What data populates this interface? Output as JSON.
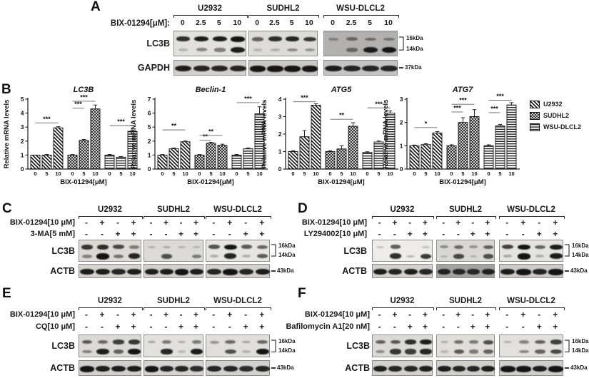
{
  "panel_a": {
    "label": "A",
    "cell_lines": [
      "U2932",
      "SUDHL2",
      "WSU-DLCL2"
    ],
    "dose_label": "BIX-01294[μM]:",
    "lane_labels": [
      "0",
      "2.5",
      "5",
      "10"
    ],
    "rows": [
      {
        "antibody": "LC3B",
        "markers": [
          "16kDa",
          "14kDa"
        ],
        "blots": [
          {
            "bg": "#e3e1de",
            "top": [
              0.85,
              0.95,
              0.95,
              1.0
            ],
            "bottom": [
              0.08,
              0.35,
              0.4,
              0.95
            ]
          },
          {
            "bg": "#dedcd9",
            "top": [
              0.55,
              0.85,
              0.9,
              0.8
            ],
            "bottom": [
              0.05,
              0.08,
              0.3,
              0.25
            ]
          },
          {
            "bg": "#b3b1af",
            "top": [
              0.2,
              0.4,
              0.35,
              0.3
            ],
            "bottom": [
              0.0,
              0.4,
              0.95,
              1.0
            ]
          }
        ]
      },
      {
        "antibody": "GAPDH",
        "markers": [
          "37kDa"
        ],
        "blots": [
          {
            "bg": "#d2cfcc",
            "single": [
              0.95,
              0.9,
              0.9,
              0.9
            ]
          },
          {
            "bg": "#cbc8c5",
            "single": [
              1.0,
              1.0,
              1.0,
              1.0
            ]
          },
          {
            "bg": "#c6c4c2",
            "single": [
              0.95,
              0.9,
              0.9,
              0.9
            ]
          }
        ]
      }
    ]
  },
  "panel_b": {
    "label": "B"
  },
  "legend": {
    "entries": [
      {
        "label": "U2932",
        "pattern": "diagonal"
      },
      {
        "label": "SUDHL2",
        "pattern": "crosshatch"
      },
      {
        "label": "WSU-DLCL2",
        "pattern": "hlines"
      }
    ]
  },
  "chart_data": [
    {
      "type": "bar",
      "title": "LC3B",
      "ylabel": "Relative mRNA levels",
      "xlabel": "BIX-01294[μM]",
      "categories": [
        "0",
        "5",
        "10"
      ],
      "yticks": [
        0,
        1,
        2,
        3,
        4,
        5
      ],
      "ylim": [
        0,
        5
      ],
      "grid": false,
      "series": [
        {
          "name": "U2932",
          "values": [
            1.0,
            1.0,
            2.95
          ],
          "errors": [
            0.0,
            0.05,
            0.08
          ]
        },
        {
          "name": "SUDHL2",
          "values": [
            1.0,
            2.05,
            4.3
          ],
          "errors": [
            0.04,
            0.07,
            0.28
          ]
        },
        {
          "name": "WSU-DLCL2",
          "values": [
            1.0,
            0.85,
            2.7
          ],
          "errors": [
            0.05,
            0.04,
            0.06
          ]
        }
      ],
      "significance": [
        {
          "from": 0,
          "to": 2,
          "y": 3.3,
          "stars": "***"
        },
        {
          "from": 3,
          "to": 4,
          "y": 4.35,
          "stars": "***"
        },
        {
          "from": 3,
          "to": 5,
          "y": 4.85,
          "stars": "***"
        },
        {
          "from": 6,
          "to": 8,
          "y": 3.1,
          "stars": "***"
        }
      ]
    },
    {
      "type": "bar",
      "title": "Beclin-1",
      "ylabel": "Relative mRNA levels",
      "xlabel": "BIX-01294[μM]",
      "categories": [
        "0",
        "5",
        "10"
      ],
      "yticks": [
        0,
        1,
        2,
        5,
        6,
        7
      ],
      "ylim": [
        0,
        7
      ],
      "axis_break": true,
      "grid": false,
      "series": [
        {
          "name": "U2932",
          "values": [
            1.0,
            1.45,
            1.95
          ],
          "errors": [
            0.04,
            0.06,
            0.07
          ]
        },
        {
          "name": "SUDHL2",
          "values": [
            1.0,
            1.85,
            1.7
          ],
          "errors": [
            0.04,
            0.06,
            0.08
          ]
        },
        {
          "name": "WSU-DLCL2",
          "values": [
            1.0,
            1.45,
            5.95
          ],
          "errors": [
            0.05,
            0.06,
            0.5
          ]
        }
      ],
      "significance": [
        {
          "from": 0,
          "to": 2,
          "y": 4.4,
          "stars": "**"
        },
        {
          "from": 3,
          "to": 4,
          "y": 2.15,
          "stars": "**"
        },
        {
          "from": 3,
          "to": 5,
          "y": 3.2,
          "stars": "**"
        },
        {
          "from": 6,
          "to": 8,
          "y": 6.75,
          "stars": "***"
        }
      ]
    },
    {
      "type": "bar",
      "title": "ATG5",
      "ylabel": "Relative mRNA levels",
      "xlabel": "BIX-01294[μM]",
      "categories": [
        "0",
        "5",
        "10"
      ],
      "yticks": [
        0,
        1,
        2,
        3,
        4
      ],
      "ylim": [
        0,
        4
      ],
      "grid": false,
      "series": [
        {
          "name": "U2932",
          "values": [
            1.0,
            1.85,
            3.65
          ],
          "errors": [
            0.04,
            0.35,
            0.08
          ]
        },
        {
          "name": "SUDHL2",
          "values": [
            1.0,
            1.15,
            2.45
          ],
          "errors": [
            0.05,
            0.18,
            0.2
          ]
        },
        {
          "name": "WSU-DLCL2",
          "values": [
            0.95,
            1.55,
            3.2
          ],
          "errors": [
            0.04,
            0.05,
            0.12
          ]
        }
      ],
      "significance": [
        {
          "from": 0,
          "to": 2,
          "y": 3.85,
          "stars": "***"
        },
        {
          "from": 3,
          "to": 5,
          "y": 2.85,
          "stars": "**"
        },
        {
          "from": 6,
          "to": 8,
          "y": 3.5,
          "stars": "***"
        }
      ]
    },
    {
      "type": "bar",
      "title": "ATG7",
      "ylabel": "Relative mRNA levels",
      "xlabel": "BIX-01294[μM]",
      "categories": [
        "0",
        "5",
        "10"
      ],
      "yticks": [
        0,
        1,
        2,
        3
      ],
      "ylim": [
        0,
        3
      ],
      "grid": false,
      "series": [
        {
          "name": "U2932",
          "values": [
            1.0,
            1.05,
            1.55
          ],
          "errors": [
            0.03,
            0.04,
            0.06
          ]
        },
        {
          "name": "SUDHL2",
          "values": [
            1.0,
            2.0,
            2.25
          ],
          "errors": [
            0.04,
            0.2,
            0.3
          ]
        },
        {
          "name": "WSU-DLCL2",
          "values": [
            1.0,
            1.85,
            2.75
          ],
          "errors": [
            0.04,
            0.06,
            0.1
          ]
        }
      ],
      "significance": [
        {
          "from": 0,
          "to": 2,
          "y": 1.78,
          "stars": "*"
        },
        {
          "from": 3,
          "to": 4,
          "y": 2.45,
          "stars": "***"
        },
        {
          "from": 3,
          "to": 5,
          "y": 2.78,
          "stars": "***"
        },
        {
          "from": 6,
          "to": 7,
          "y": 2.42,
          "stars": "***"
        },
        {
          "from": 6,
          "to": 8,
          "y": 2.95,
          "stars": "***"
        }
      ]
    }
  ],
  "panel_c": {
    "label": "C",
    "cell_lines": [
      "U2932",
      "SUDHL2",
      "WSU-DLCL2"
    ],
    "condition_rows": [
      {
        "label": "BIX-01294[10 μM]",
        "signs": [
          "-",
          "+",
          "-",
          "+"
        ]
      },
      {
        "label": "3-MA[5 mM]",
        "signs": [
          "-",
          "-",
          "+",
          "+"
        ]
      }
    ],
    "rows": [
      {
        "antibody": "LC3B",
        "markers": [
          "16kDa",
          "14kDa"
        ],
        "blots": [
          {
            "bg": "#ddd9d4",
            "top": [
              0.8,
              0.85,
              0.7,
              0.38
            ],
            "bottom": [
              0.35,
              1.0,
              0.45,
              0.9
            ]
          },
          {
            "bg": "#dcdad6",
            "top": [
              0.07,
              0.12,
              0.05,
              0.05
            ],
            "bottom": [
              0.0,
              0.65,
              0.02,
              0.4
            ]
          },
          {
            "bg": "#e7e5e1",
            "top": [
              0.65,
              1.0,
              0.6,
              0.55
            ],
            "bottom": [
              0.12,
              0.9,
              0.12,
              0.6
            ]
          }
        ]
      },
      {
        "antibody": "ACTB",
        "markers": [
          "43kDa"
        ],
        "blots": [
          {
            "bg": "#d6d3cf",
            "single": [
              0.95,
              0.95,
              0.9,
              0.95
            ]
          },
          {
            "bg": "#d2cfcc",
            "single": [
              0.95,
              0.95,
              1.0,
              0.95
            ]
          },
          {
            "bg": "#d4d1ce",
            "single": [
              0.9,
              1.0,
              0.9,
              0.95
            ]
          }
        ]
      }
    ]
  },
  "panel_d": {
    "label": "D",
    "cell_lines": [
      "U2932",
      "SUDHL2",
      "WSU-DLCL2"
    ],
    "condition_rows": [
      {
        "label": "BIX-01294[10 μM]",
        "signs": [
          "-",
          "+",
          "-",
          "+"
        ]
      },
      {
        "label": "LY294002[10 μM]",
        "signs": [
          "-",
          "-",
          "+",
          "+"
        ]
      }
    ],
    "rows": [
      {
        "antibody": "LC3B",
        "markers": [
          "16kDa",
          "14kDa"
        ],
        "blots": [
          {
            "bg": "#eeece8",
            "top": [
              0.05,
              0.6,
              0.03,
              0.06
            ],
            "bottom": [
              0.02,
              0.85,
              0.1,
              0.8
            ]
          },
          {
            "bg": "#d9d7d3",
            "top": [
              0.3,
              0.5,
              0.25,
              0.55
            ],
            "bottom": [
              0.04,
              0.7,
              0.04,
              0.65
            ]
          },
          {
            "bg": "#e5e3df",
            "top": [
              0.75,
              1.0,
              0.55,
              0.95
            ],
            "bottom": [
              0.15,
              1.0,
              0.12,
              0.95
            ]
          }
        ]
      },
      {
        "antibody": "ACTB",
        "markers": [
          "43kDa"
        ],
        "blots": [
          {
            "bg": "#d4d1ce",
            "single": [
              0.95,
              0.9,
              0.95,
              0.9
            ]
          },
          {
            "bg": "#a5a3a0",
            "single": [
              0.9,
              0.85,
              0.85,
              0.9
            ]
          },
          {
            "bg": "#cdcac7",
            "single": [
              0.95,
              1.0,
              0.9,
              1.0
            ]
          }
        ]
      }
    ]
  },
  "panel_e": {
    "label": "E",
    "cell_lines": [
      "U2932",
      "SUDHL2",
      "WSU-DLCL2"
    ],
    "condition_rows": [
      {
        "label": "BIX-01294[10 μM]",
        "signs": [
          "-",
          "+",
          "-",
          "+"
        ]
      },
      {
        "label": "CQ[10 μM]",
        "signs": [
          "-",
          "-",
          "+",
          "+"
        ]
      }
    ],
    "rows": [
      {
        "antibody": "LC3B",
        "markers": [
          "16kDa",
          "14kDa"
        ],
        "blots": [
          {
            "bg": "#dcdad6",
            "top": [
              0.6,
              0.5,
              0.75,
              0.8
            ],
            "bottom": [
              0.35,
              0.95,
              0.55,
              1.0
            ]
          },
          {
            "bg": "#e3e1dd",
            "top": [
              0.18,
              0.4,
              0.12,
              0.42
            ],
            "bottom": [
              0.03,
              0.9,
              0.05,
              0.95
            ]
          },
          {
            "bg": "#e1dfdb",
            "top": [
              0.25,
              0.5,
              0.18,
              0.5
            ],
            "bottom": [
              0.03,
              0.65,
              0.08,
              1.0
            ]
          }
        ]
      },
      {
        "antibody": "ACTB",
        "markers": [
          "43kDa"
        ],
        "blots": [
          {
            "bg": "#d2cfcc",
            "single": [
              1.0,
              0.95,
              0.95,
              0.95
            ]
          },
          {
            "bg": "#d6d3d0",
            "single": [
              1.0,
              0.9,
              0.9,
              0.85
            ]
          },
          {
            "bg": "#d4d2cf",
            "single": [
              0.9,
              0.9,
              0.85,
              0.9
            ]
          }
        ]
      }
    ]
  },
  "panel_f": {
    "label": "F",
    "cell_lines": [
      "U2932",
      "SUDHL2",
      "WSU-DLCL2"
    ],
    "condition_rows": [
      {
        "label": "BIX-01294[10 μM]",
        "signs": [
          "-",
          "+",
          "-",
          "+"
        ]
      },
      {
        "label": "Bafilomycin A1[20 nM]",
        "signs": [
          "-",
          "-",
          "+",
          "+"
        ]
      }
    ],
    "rows": [
      {
        "antibody": "LC3B",
        "markers": [
          "16kDa",
          "14kDa"
        ],
        "blots": [
          {
            "bg": "#dcdad6",
            "top": [
              0.55,
              0.6,
              0.85,
              0.95
            ],
            "bottom": [
              0.3,
              0.8,
              0.75,
              0.9
            ]
          },
          {
            "bg": "#e1deda",
            "top": [
              0.12,
              0.45,
              0.4,
              0.65
            ],
            "bottom": [
              0.06,
              0.6,
              0.4,
              0.55
            ]
          },
          {
            "bg": "#e3e1dd",
            "top": [
              0.1,
              0.35,
              0.55,
              0.75
            ],
            "bottom": [
              0.03,
              0.35,
              0.55,
              0.7
            ]
          }
        ]
      },
      {
        "antibody": "ACTB",
        "markers": [
          "43kDa"
        ],
        "blots": [
          {
            "bg": "#d4d1ce",
            "single": [
              0.95,
              0.9,
              0.9,
              0.95
            ]
          },
          {
            "bg": "#d2d0cd",
            "single": [
              0.95,
              0.9,
              0.9,
              0.95
            ]
          },
          {
            "bg": "#d0cecb",
            "single": [
              1.0,
              1.0,
              0.95,
              1.0
            ]
          }
        ]
      }
    ]
  },
  "colors": {
    "ink": "#141414",
    "axis": "#1a1a1a",
    "sig_line": "#666666"
  }
}
